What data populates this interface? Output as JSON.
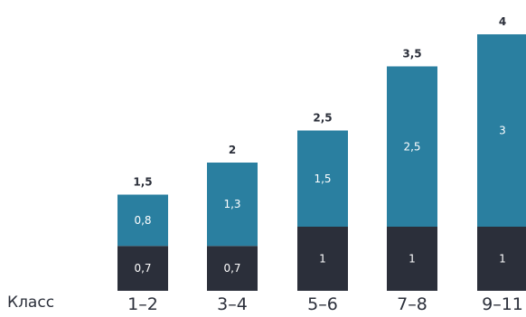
{
  "chart_data": {
    "type": "bar",
    "stacked": true,
    "xlabel": "Класс",
    "categories": [
      "1–2",
      "3–4",
      "5–6",
      "7–8",
      "9–11"
    ],
    "series": [
      {
        "values": [
          0.7,
          0.7,
          1,
          1,
          1
        ],
        "value_labels": [
          "0,7",
          "0,7",
          "1",
          "1",
          "1"
        ],
        "color": "#2b2f3a"
      },
      {
        "values": [
          0.8,
          1.3,
          1.5,
          2.5,
          3
        ],
        "value_labels": [
          "0,8",
          "1,3",
          "1,5",
          "2,5",
          "3"
        ],
        "color": "#2a7fa0"
      }
    ],
    "totals": [
      1.5,
      2,
      2.5,
      3.5,
      4
    ],
    "total_labels": [
      "1,5",
      "2",
      "2,5",
      "3,5",
      "4"
    ],
    "ylim": [
      0,
      4
    ],
    "grid": false,
    "legend": "none"
  }
}
